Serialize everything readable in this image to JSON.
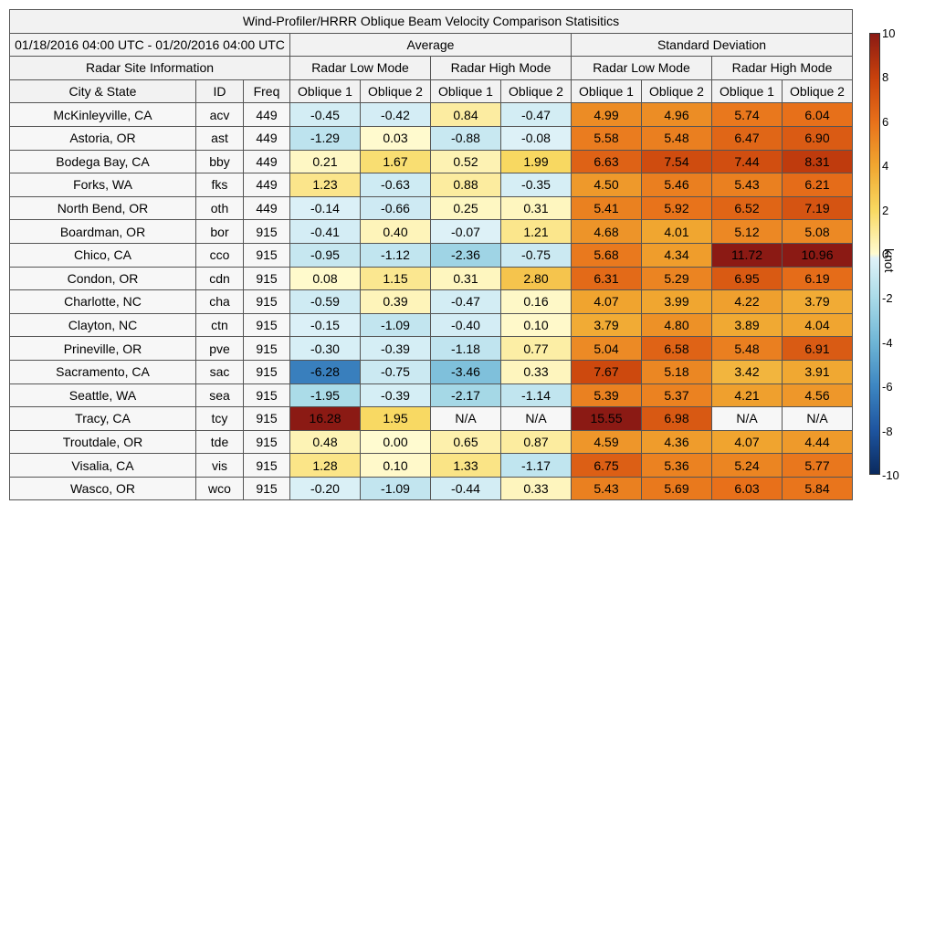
{
  "chart_data": {
    "type": "heatmap",
    "title": "Wind-Profiler/HRRR Oblique Beam Velocity Comparison Statisitics",
    "date_range": "01/18/2016 04:00 UTC - 01/20/2016 04:00 UTC",
    "group_headers": {
      "info": "Radar Site Information",
      "average": "Average",
      "std": "Standard Deviation"
    },
    "mode_headers": [
      "Radar Low Mode",
      "Radar High Mode",
      "Radar Low Mode",
      "Radar High Mode"
    ],
    "column_headers": [
      "City & State",
      "ID",
      "Freq",
      "Oblique 1",
      "Oblique 2",
      "Oblique 1",
      "Oblique 2",
      "Oblique 1",
      "Oblique 2",
      "Oblique 1",
      "Oblique 2"
    ],
    "rows": [
      {
        "city": "McKinleyville, CA",
        "id": "acv",
        "freq": "449",
        "values": [
          "-0.45",
          "-0.42",
          "0.84",
          "-0.47",
          "4.99",
          "4.96",
          "5.74",
          "6.04"
        ]
      },
      {
        "city": "Astoria, OR",
        "id": "ast",
        "freq": "449",
        "values": [
          "-1.29",
          "0.03",
          "-0.88",
          "-0.08",
          "5.58",
          "5.48",
          "6.47",
          "6.90"
        ]
      },
      {
        "city": "Bodega Bay, CA",
        "id": "bby",
        "freq": "449",
        "values": [
          "0.21",
          "1.67",
          "0.52",
          "1.99",
          "6.63",
          "7.54",
          "7.44",
          "8.31"
        ]
      },
      {
        "city": "Forks, WA",
        "id": "fks",
        "freq": "449",
        "values": [
          "1.23",
          "-0.63",
          "0.88",
          "-0.35",
          "4.50",
          "5.46",
          "5.43",
          "6.21"
        ]
      },
      {
        "city": "North Bend, OR",
        "id": "oth",
        "freq": "449",
        "values": [
          "-0.14",
          "-0.66",
          "0.25",
          "0.31",
          "5.41",
          "5.92",
          "6.52",
          "7.19"
        ]
      },
      {
        "city": "Boardman, OR",
        "id": "bor",
        "freq": "915",
        "values": [
          "-0.41",
          "0.40",
          "-0.07",
          "1.21",
          "4.68",
          "4.01",
          "5.12",
          "5.08"
        ]
      },
      {
        "city": "Chico, CA",
        "id": "cco",
        "freq": "915",
        "values": [
          "-0.95",
          "-1.12",
          "-2.36",
          "-0.75",
          "5.68",
          "4.34",
          "11.72",
          "10.96"
        ]
      },
      {
        "city": "Condon, OR",
        "id": "cdn",
        "freq": "915",
        "values": [
          "0.08",
          "1.15",
          "0.31",
          "2.80",
          "6.31",
          "5.29",
          "6.95",
          "6.19"
        ]
      },
      {
        "city": "Charlotte, NC",
        "id": "cha",
        "freq": "915",
        "values": [
          "-0.59",
          "0.39",
          "-0.47",
          "0.16",
          "4.07",
          "3.99",
          "4.22",
          "3.79"
        ]
      },
      {
        "city": "Clayton, NC",
        "id": "ctn",
        "freq": "915",
        "values": [
          "-0.15",
          "-1.09",
          "-0.40",
          "0.10",
          "3.79",
          "4.80",
          "3.89",
          "4.04"
        ]
      },
      {
        "city": "Prineville, OR",
        "id": "pve",
        "freq": "915",
        "values": [
          "-0.30",
          "-0.39",
          "-1.18",
          "0.77",
          "5.04",
          "6.58",
          "5.48",
          "6.91"
        ]
      },
      {
        "city": "Sacramento, CA",
        "id": "sac",
        "freq": "915",
        "values": [
          "-6.28",
          "-0.75",
          "-3.46",
          "0.33",
          "7.67",
          "5.18",
          "3.42",
          "3.91"
        ]
      },
      {
        "city": "Seattle, WA",
        "id": "sea",
        "freq": "915",
        "values": [
          "-1.95",
          "-0.39",
          "-2.17",
          "-1.14",
          "5.39",
          "5.37",
          "4.21",
          "4.56"
        ]
      },
      {
        "city": "Tracy, CA",
        "id": "tcy",
        "freq": "915",
        "values": [
          "16.28",
          "1.95",
          "N/A",
          "N/A",
          "15.55",
          "6.98",
          "N/A",
          "N/A"
        ]
      },
      {
        "city": "Troutdale, OR",
        "id": "tde",
        "freq": "915",
        "values": [
          "0.48",
          "0.00",
          "0.65",
          "0.87",
          "4.59",
          "4.36",
          "4.07",
          "4.44"
        ]
      },
      {
        "city": "Visalia, CA",
        "id": "vis",
        "freq": "915",
        "values": [
          "1.28",
          "0.10",
          "1.33",
          "-1.17",
          "6.75",
          "5.36",
          "5.24",
          "5.77"
        ]
      },
      {
        "city": "Wasco, OR",
        "id": "wco",
        "freq": "915",
        "values": [
          "-0.20",
          "-1.09",
          "-0.44",
          "0.33",
          "5.43",
          "5.69",
          "6.03",
          "5.84"
        ]
      }
    ],
    "colorbar": {
      "label": "knot",
      "range": [
        -10,
        10
      ],
      "ticks": [
        "10",
        "8",
        "6",
        "4",
        "2",
        "0",
        "-2",
        "-4",
        "-6",
        "-8",
        "-10"
      ],
      "scale_colors_pos": [
        "#fffbd0",
        "#f8d860",
        "#f0a630",
        "#e8711a",
        "#c8410c",
        "#8b1a14"
      ],
      "scale_colors_neg": [
        "#dff2f8",
        "#aadbe8",
        "#6fb6d6",
        "#3d86c2",
        "#1e55a0",
        "#0a2a5e"
      ]
    },
    "na_color": "#f7f7f7"
  }
}
